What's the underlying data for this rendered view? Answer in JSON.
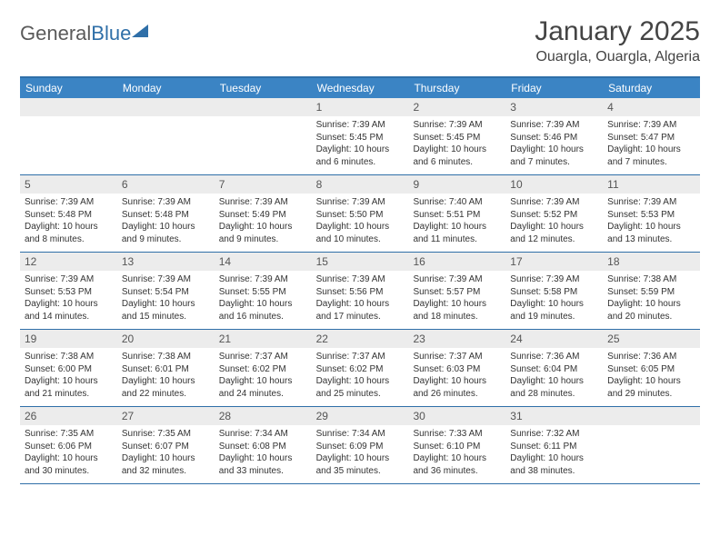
{
  "brand": {
    "part1": "General",
    "part2": "Blue"
  },
  "title": "January 2025",
  "subtitle": "Ouargla, Ouargla, Algeria",
  "colors": {
    "header_bg": "#3b84c4",
    "border": "#2f6fa8",
    "daynum_bg": "#ececec",
    "text": "#333333",
    "title": "#444444"
  },
  "day_names": [
    "Sunday",
    "Monday",
    "Tuesday",
    "Wednesday",
    "Thursday",
    "Friday",
    "Saturday"
  ],
  "weeks": [
    [
      null,
      null,
      null,
      {
        "n": "1",
        "sr": "Sunrise: 7:39 AM",
        "ss": "Sunset: 5:45 PM",
        "dl": "Daylight: 10 hours and 6 minutes."
      },
      {
        "n": "2",
        "sr": "Sunrise: 7:39 AM",
        "ss": "Sunset: 5:45 PM",
        "dl": "Daylight: 10 hours and 6 minutes."
      },
      {
        "n": "3",
        "sr": "Sunrise: 7:39 AM",
        "ss": "Sunset: 5:46 PM",
        "dl": "Daylight: 10 hours and 7 minutes."
      },
      {
        "n": "4",
        "sr": "Sunrise: 7:39 AM",
        "ss": "Sunset: 5:47 PM",
        "dl": "Daylight: 10 hours and 7 minutes."
      }
    ],
    [
      {
        "n": "5",
        "sr": "Sunrise: 7:39 AM",
        "ss": "Sunset: 5:48 PM",
        "dl": "Daylight: 10 hours and 8 minutes."
      },
      {
        "n": "6",
        "sr": "Sunrise: 7:39 AM",
        "ss": "Sunset: 5:48 PM",
        "dl": "Daylight: 10 hours and 9 minutes."
      },
      {
        "n": "7",
        "sr": "Sunrise: 7:39 AM",
        "ss": "Sunset: 5:49 PM",
        "dl": "Daylight: 10 hours and 9 minutes."
      },
      {
        "n": "8",
        "sr": "Sunrise: 7:39 AM",
        "ss": "Sunset: 5:50 PM",
        "dl": "Daylight: 10 hours and 10 minutes."
      },
      {
        "n": "9",
        "sr": "Sunrise: 7:40 AM",
        "ss": "Sunset: 5:51 PM",
        "dl": "Daylight: 10 hours and 11 minutes."
      },
      {
        "n": "10",
        "sr": "Sunrise: 7:39 AM",
        "ss": "Sunset: 5:52 PM",
        "dl": "Daylight: 10 hours and 12 minutes."
      },
      {
        "n": "11",
        "sr": "Sunrise: 7:39 AM",
        "ss": "Sunset: 5:53 PM",
        "dl": "Daylight: 10 hours and 13 minutes."
      }
    ],
    [
      {
        "n": "12",
        "sr": "Sunrise: 7:39 AM",
        "ss": "Sunset: 5:53 PM",
        "dl": "Daylight: 10 hours and 14 minutes."
      },
      {
        "n": "13",
        "sr": "Sunrise: 7:39 AM",
        "ss": "Sunset: 5:54 PM",
        "dl": "Daylight: 10 hours and 15 minutes."
      },
      {
        "n": "14",
        "sr": "Sunrise: 7:39 AM",
        "ss": "Sunset: 5:55 PM",
        "dl": "Daylight: 10 hours and 16 minutes."
      },
      {
        "n": "15",
        "sr": "Sunrise: 7:39 AM",
        "ss": "Sunset: 5:56 PM",
        "dl": "Daylight: 10 hours and 17 minutes."
      },
      {
        "n": "16",
        "sr": "Sunrise: 7:39 AM",
        "ss": "Sunset: 5:57 PM",
        "dl": "Daylight: 10 hours and 18 minutes."
      },
      {
        "n": "17",
        "sr": "Sunrise: 7:39 AM",
        "ss": "Sunset: 5:58 PM",
        "dl": "Daylight: 10 hours and 19 minutes."
      },
      {
        "n": "18",
        "sr": "Sunrise: 7:38 AM",
        "ss": "Sunset: 5:59 PM",
        "dl": "Daylight: 10 hours and 20 minutes."
      }
    ],
    [
      {
        "n": "19",
        "sr": "Sunrise: 7:38 AM",
        "ss": "Sunset: 6:00 PM",
        "dl": "Daylight: 10 hours and 21 minutes."
      },
      {
        "n": "20",
        "sr": "Sunrise: 7:38 AM",
        "ss": "Sunset: 6:01 PM",
        "dl": "Daylight: 10 hours and 22 minutes."
      },
      {
        "n": "21",
        "sr": "Sunrise: 7:37 AM",
        "ss": "Sunset: 6:02 PM",
        "dl": "Daylight: 10 hours and 24 minutes."
      },
      {
        "n": "22",
        "sr": "Sunrise: 7:37 AM",
        "ss": "Sunset: 6:02 PM",
        "dl": "Daylight: 10 hours and 25 minutes."
      },
      {
        "n": "23",
        "sr": "Sunrise: 7:37 AM",
        "ss": "Sunset: 6:03 PM",
        "dl": "Daylight: 10 hours and 26 minutes."
      },
      {
        "n": "24",
        "sr": "Sunrise: 7:36 AM",
        "ss": "Sunset: 6:04 PM",
        "dl": "Daylight: 10 hours and 28 minutes."
      },
      {
        "n": "25",
        "sr": "Sunrise: 7:36 AM",
        "ss": "Sunset: 6:05 PM",
        "dl": "Daylight: 10 hours and 29 minutes."
      }
    ],
    [
      {
        "n": "26",
        "sr": "Sunrise: 7:35 AM",
        "ss": "Sunset: 6:06 PM",
        "dl": "Daylight: 10 hours and 30 minutes."
      },
      {
        "n": "27",
        "sr": "Sunrise: 7:35 AM",
        "ss": "Sunset: 6:07 PM",
        "dl": "Daylight: 10 hours and 32 minutes."
      },
      {
        "n": "28",
        "sr": "Sunrise: 7:34 AM",
        "ss": "Sunset: 6:08 PM",
        "dl": "Daylight: 10 hours and 33 minutes."
      },
      {
        "n": "29",
        "sr": "Sunrise: 7:34 AM",
        "ss": "Sunset: 6:09 PM",
        "dl": "Daylight: 10 hours and 35 minutes."
      },
      {
        "n": "30",
        "sr": "Sunrise: 7:33 AM",
        "ss": "Sunset: 6:10 PM",
        "dl": "Daylight: 10 hours and 36 minutes."
      },
      {
        "n": "31",
        "sr": "Sunrise: 7:32 AM",
        "ss": "Sunset: 6:11 PM",
        "dl": "Daylight: 10 hours and 38 minutes."
      },
      null
    ]
  ]
}
